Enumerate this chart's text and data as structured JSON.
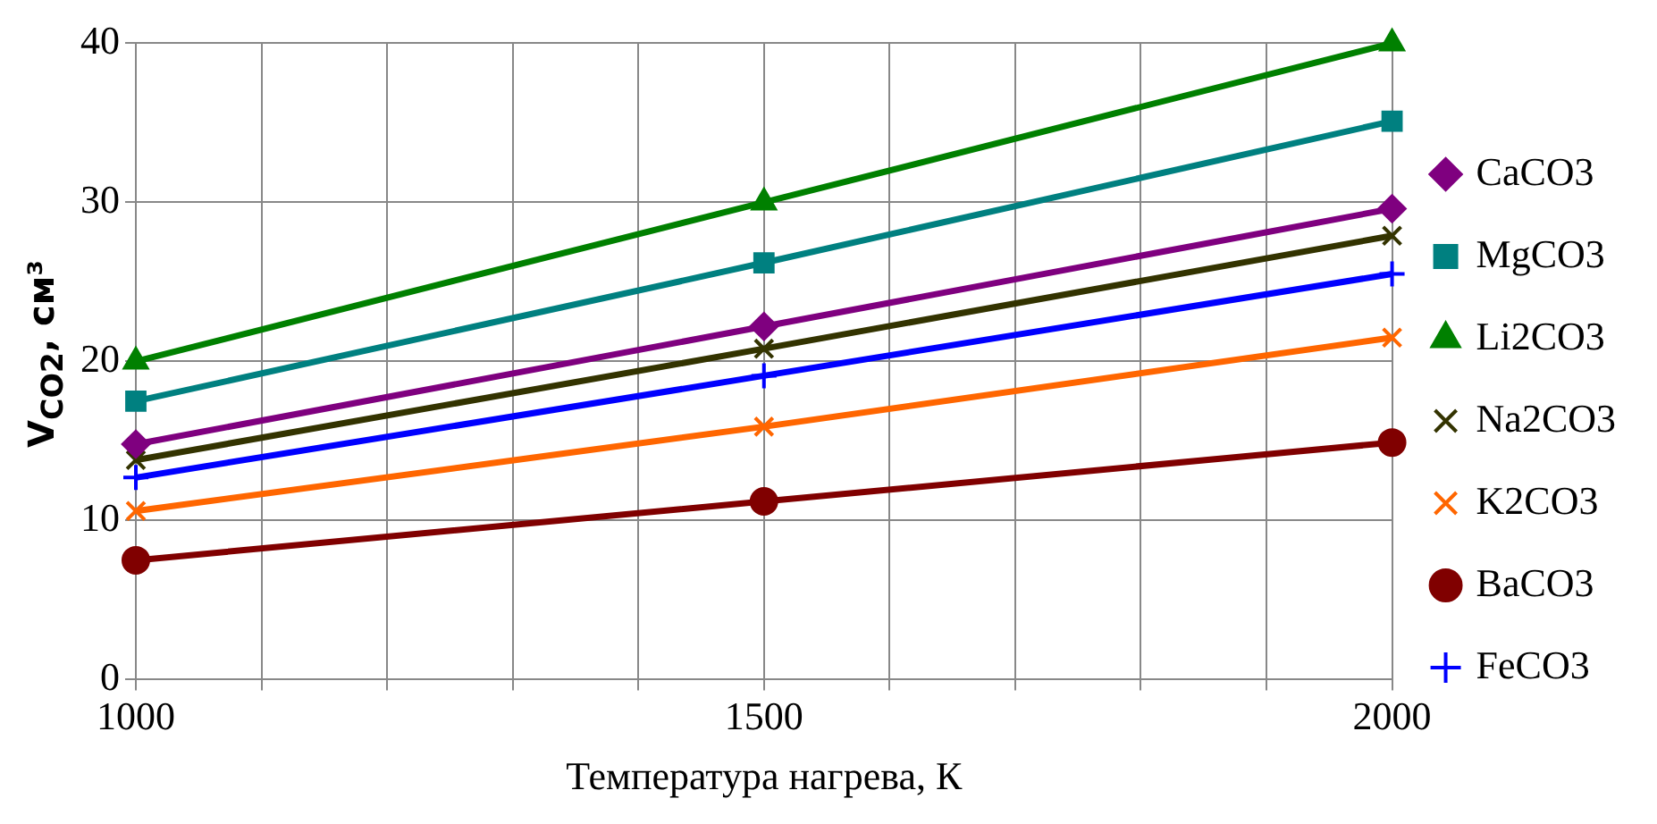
{
  "chart_data": {
    "type": "line",
    "xlabel": "Температура нагрева, К",
    "ylabel": "V$_{CO2}$, см³",
    "x": [
      1000,
      1500,
      2000
    ],
    "series": [
      {
        "name": "CaCO3",
        "color": "#7f007f",
        "marker": "diamond",
        "values": [
          14.8,
          22.2,
          29.6
        ]
      },
      {
        "name": "MgCO3",
        "color": "#008080",
        "marker": "square",
        "values": [
          17.5,
          26.2,
          35.1
        ]
      },
      {
        "name": "Li2CO3",
        "color": "#008000",
        "marker": "triangle",
        "values": [
          20,
          30,
          40
        ]
      },
      {
        "name": "Na2CO3",
        "color": "#333300",
        "marker": "cross",
        "values": [
          13.8,
          20.8,
          27.9
        ]
      },
      {
        "name": "K2CO3",
        "color": "#ff6600",
        "marker": "cross",
        "values": [
          10.6,
          15.9,
          21.5
        ]
      },
      {
        "name": "BaCO3",
        "color": "#800000",
        "marker": "circle",
        "values": [
          7.5,
          11.2,
          14.9
        ]
      },
      {
        "name": "FeCO3",
        "color": "#0000ff",
        "marker": "plus",
        "values": [
          12.7,
          19.1,
          25.5
        ]
      }
    ],
    "xlim": [
      1000,
      2000
    ],
    "xticks": [
      1000,
      {
        "value": 1100,
        "label": null
      },
      {
        "value": 1200,
        "label": null
      },
      {
        "value": 1300,
        "label": null
      },
      {
        "value": 1400,
        "label": null
      },
      1500,
      {
        "value": 1600,
        "label": null
      },
      {
        "value": 1700,
        "label": null
      },
      {
        "value": 1800,
        "label": null
      },
      {
        "value": 1900,
        "label": null
      },
      2000
    ],
    "ylim": [
      0,
      40
    ],
    "yticks": [
      0,
      10,
      20,
      30,
      40
    ],
    "grid": true,
    "legend": "right",
    "line_style": "solid"
  }
}
